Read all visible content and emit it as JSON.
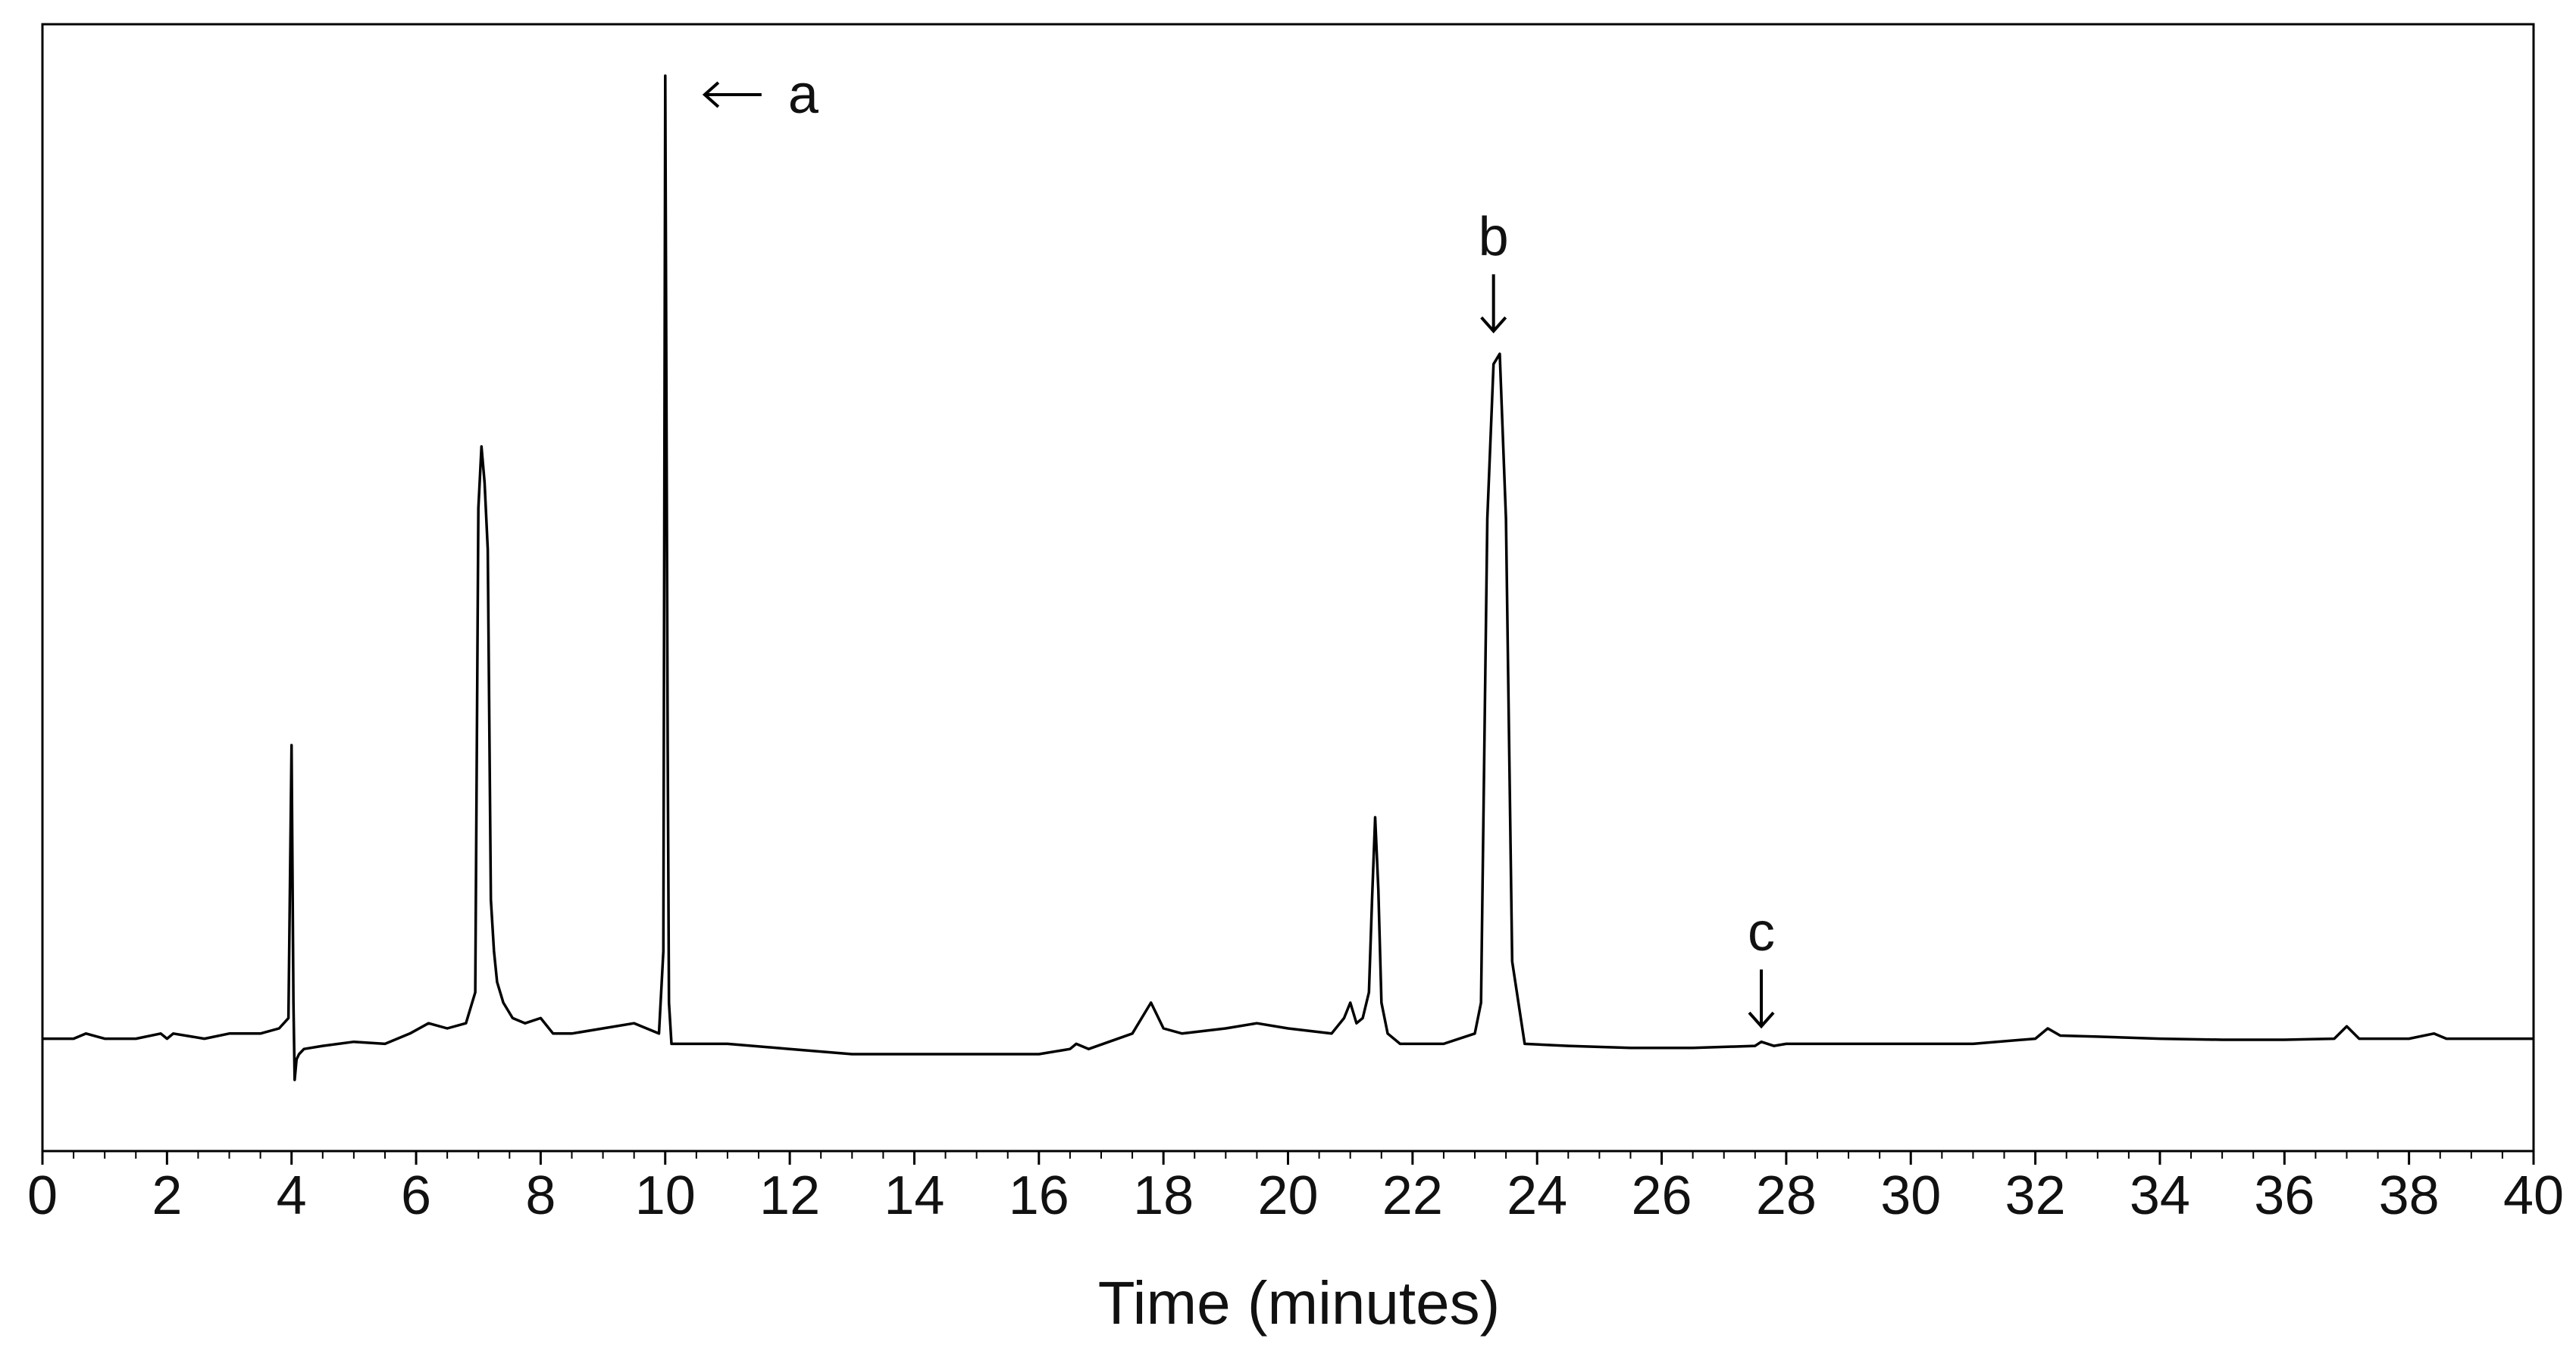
{
  "chart_data": {
    "type": "line",
    "title": "",
    "xlabel": "Time (minutes)",
    "ylabel": "",
    "xlim": [
      0,
      40
    ],
    "ylim": [
      0,
      100
    ],
    "grid": false,
    "x_ticks": [
      "0",
      "2",
      "4",
      "6",
      "8",
      "10",
      "12",
      "14",
      "16",
      "18",
      "20",
      "22",
      "24",
      "26",
      "28",
      "30",
      "32",
      "34",
      "36",
      "38",
      "40"
    ],
    "annotations": [
      {
        "label": "a",
        "x": 10.05,
        "y": 100,
        "arrow": "left"
      },
      {
        "label": "b",
        "x": 23.3,
        "y": 73,
        "arrow": "down"
      },
      {
        "label": "c",
        "x": 27.6,
        "y": 5.5,
        "arrow": "down"
      }
    ],
    "series": [
      {
        "color": "#000000",
        "x": [
          0,
          0.5,
          0.7,
          1.0,
          1.5,
          1.9,
          2.0,
          2.1,
          2.6,
          3.0,
          3.5,
          3.8,
          3.95,
          4.0,
          4.03,
          4.05,
          4.08,
          4.12,
          4.2,
          4.5,
          5.0,
          5.5,
          5.9,
          6.2,
          6.5,
          6.8,
          6.95,
          7.0,
          7.05,
          7.1,
          7.15,
          7.2,
          7.25,
          7.3,
          7.4,
          7.55,
          7.75,
          8.0,
          8.2,
          8.5,
          9.0,
          9.5,
          9.9,
          9.97,
          10.0,
          10.04,
          10.06,
          10.1,
          10.2,
          10.3,
          11.0,
          12.0,
          13.0,
          14.0,
          15.0,
          16.0,
          16.5,
          16.6,
          16.8,
          17.5,
          17.8,
          18.0,
          18.3,
          19.0,
          19.5,
          20.0,
          20.7,
          20.9,
          21.0,
          21.1,
          21.2,
          21.3,
          21.35,
          21.4,
          21.45,
          21.5,
          21.6,
          21.8,
          22.5,
          23.0,
          23.1,
          23.2,
          23.3,
          23.4,
          23.5,
          23.6,
          23.8,
          24.5,
          25.5,
          26.5,
          27.5,
          27.6,
          27.8,
          28.0,
          29.0,
          30.0,
          31.0,
          32.0,
          32.2,
          32.4,
          33.0,
          34.0,
          35.0,
          36.0,
          36.8,
          37.0,
          37.2,
          38.0,
          38.4,
          38.6,
          39.0,
          40.0
        ],
        "y": [
          6.5,
          6.5,
          7.0,
          6.5,
          6.5,
          7.0,
          6.5,
          7.0,
          6.5,
          7.0,
          7.0,
          7.5,
          8.5,
          35.0,
          10.0,
          2.5,
          4.5,
          5.0,
          5.5,
          5.8,
          6.2,
          6.0,
          7.0,
          8.0,
          7.5,
          8.0,
          11.0,
          58.0,
          64.0,
          60.5,
          54.0,
          20.0,
          15.0,
          12.0,
          10.0,
          8.5,
          8.0,
          8.5,
          7.0,
          7.0,
          7.5,
          8.0,
          7.0,
          15.0,
          100.0,
          35.0,
          10.0,
          6.0,
          6.0,
          6.0,
          6.0,
          5.5,
          5.0,
          5.0,
          5.0,
          5.0,
          5.5,
          6.0,
          5.5,
          7.0,
          10.0,
          7.5,
          7.0,
          7.5,
          8.0,
          7.5,
          7.0,
          8.5,
          10.0,
          8.0,
          8.5,
          11.0,
          20.0,
          28.0,
          21.0,
          10.0,
          7.0,
          6.0,
          6.0,
          7.0,
          10.0,
          57.0,
          72.0,
          73.0,
          57.0,
          14.0,
          6.0,
          5.8,
          5.6,
          5.6,
          5.8,
          6.2,
          5.8,
          6.0,
          6.0,
          6.0,
          6.0,
          6.5,
          7.5,
          6.8,
          6.7,
          6.5,
          6.4,
          6.4,
          6.5,
          7.7,
          6.5,
          6.5,
          7.0,
          6.5,
          6.5,
          6.5
        ]
      }
    ]
  }
}
